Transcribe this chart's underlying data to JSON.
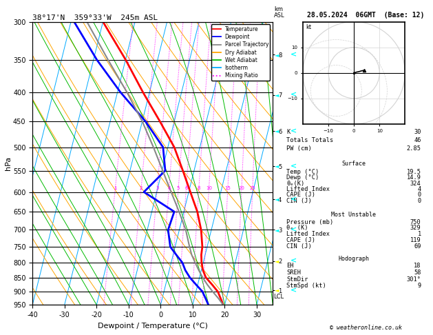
{
  "title_left": "38°17'N  359°33'W  245m ASL",
  "title_right": "28.05.2024  06GMT  (Base: 12)",
  "xlabel": "Dewpoint / Temperature (°C)",
  "ylabel_left": "hPa",
  "pressure_major": [
    300,
    350,
    400,
    450,
    500,
    550,
    600,
    650,
    700,
    750,
    800,
    850,
    900,
    950
  ],
  "temp_ticks": [
    -40,
    -30,
    -20,
    -10,
    0,
    10,
    20,
    30
  ],
  "isotherm_color": "#00aaff",
  "dry_adiabat_color": "#ffa500",
  "wet_adiabat_color": "#00bb00",
  "mixing_ratio_color": "#ff00ff",
  "temperature_color": "#ff0000",
  "dewpoint_color": "#0000ff",
  "parcel_color": "#888888",
  "temp_profile": {
    "pressure": [
      950,
      925,
      900,
      875,
      850,
      825,
      800,
      775,
      750,
      700,
      650,
      600,
      550,
      500,
      450,
      400,
      350,
      300
    ],
    "temperature": [
      19.5,
      18.2,
      16.8,
      14.5,
      12.0,
      10.5,
      9.5,
      8.8,
      8.5,
      6.8,
      4.2,
      0.5,
      -3.5,
      -8.0,
      -14.5,
      -22.0,
      -30.0,
      -40.0
    ]
  },
  "dewp_profile": {
    "pressure": [
      950,
      925,
      900,
      875,
      850,
      825,
      800,
      775,
      750,
      700,
      650,
      600,
      550,
      500,
      450,
      400,
      350,
      300
    ],
    "dewpoint": [
      14.9,
      13.5,
      12.0,
      9.5,
      7.0,
      5.0,
      3.5,
      1.0,
      -1.5,
      -3.5,
      -3.0,
      -14.0,
      -9.0,
      -11.5,
      -19.0,
      -29.0,
      -39.0,
      -49.0
    ]
  },
  "parcel_profile": {
    "pressure": [
      950,
      925,
      900,
      875,
      850,
      825,
      800,
      775,
      750,
      700,
      650,
      600,
      550,
      500,
      450,
      400,
      350,
      300
    ],
    "temperature": [
      19.5,
      17.5,
      15.2,
      13.0,
      11.0,
      9.2,
      7.5,
      5.8,
      4.5,
      2.0,
      -1.5,
      -5.5,
      -9.8,
      -14.5,
      -20.0,
      -27.0,
      -35.5,
      -45.0
    ]
  },
  "mixing_ratios": [
    1,
    2,
    3,
    4,
    5,
    6,
    8,
    10,
    15,
    20,
    25
  ],
  "km_asl_ticks": [
    1,
    2,
    3,
    4,
    5,
    6,
    7,
    8
  ],
  "km_asl_pressures": [
    895,
    795,
    700,
    618,
    540,
    468,
    404,
    343
  ],
  "lcl_pressure": 918,
  "stats": {
    "K": 30,
    "Totals_Totals": 46,
    "PW_cm": 2.85,
    "Surf_Temp": 19.5,
    "Surf_Dewp": 14.9,
    "Surf_theta_e": 324,
    "Surf_LI": 4,
    "Surf_CAPE": 0,
    "Surf_CIN": 0,
    "MU_Pressure": 750,
    "MU_theta_e": 329,
    "MU_LI": 1,
    "MU_CAPE": 119,
    "MU_CIN": 69,
    "EH": 18,
    "SREH": 58,
    "StmDir": 301,
    "StmSpd": 9
  },
  "legend_items": [
    {
      "label": "Temperature",
      "color": "#ff0000",
      "style": "solid"
    },
    {
      "label": "Dewpoint",
      "color": "#0000ff",
      "style": "solid"
    },
    {
      "label": "Parcel Trajectory",
      "color": "#888888",
      "style": "solid"
    },
    {
      "label": "Dry Adiabat",
      "color": "#ffa500",
      "style": "solid"
    },
    {
      "label": "Wet Adiabat",
      "color": "#00bb00",
      "style": "solid"
    },
    {
      "label": "Isotherm",
      "color": "#00aaff",
      "style": "solid"
    },
    {
      "label": "Mixing Ratio",
      "color": "#ff00ff",
      "style": "dotted"
    }
  ],
  "skew": 22,
  "p_min": 300,
  "p_max": 950,
  "t_min": -40,
  "t_max": 35
}
